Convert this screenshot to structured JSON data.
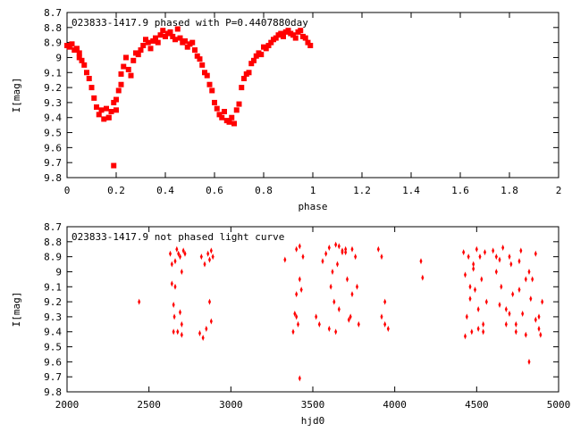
{
  "chart_data": [
    {
      "type": "scatter",
      "title": "023833-1417.9 phased with P=0.4407880day",
      "xlabel": "phase",
      "ylabel": "I[mag]",
      "xlim": [
        0,
        2
      ],
      "ylim": [
        9.8,
        8.7
      ],
      "y_inverted": true,
      "x_ticks": [
        "0",
        "0.2",
        "0.4",
        "0.6",
        "0.8",
        "1",
        "1.2",
        "1.4",
        "1.6",
        "1.8",
        "2"
      ],
      "y_ticks": [
        "8.7",
        "8.8",
        "8.9",
        "9",
        "9.1",
        "9.2",
        "9.3",
        "9.4",
        "9.5",
        "9.6",
        "9.7",
        "9.8"
      ],
      "marker": "filled-square",
      "color": "#ff0000",
      "series": [
        {
          "x": [
            0.0,
            0.01,
            0.02,
            0.03,
            0.04,
            0.05,
            0.05,
            0.06,
            0.07,
            0.08,
            0.09,
            0.1,
            0.11,
            0.12,
            0.13,
            0.14,
            0.15,
            0.16,
            0.17,
            0.18,
            0.19,
            0.2,
            0.2,
            0.21,
            0.22,
            0.22,
            0.23,
            0.24,
            0.25,
            0.26,
            0.27,
            0.28,
            0.29,
            0.3,
            0.31,
            0.32,
            0.33,
            0.34,
            0.35,
            0.36,
            0.37,
            0.38,
            0.39,
            0.4,
            0.41,
            0.42,
            0.43,
            0.44,
            0.45,
            0.46,
            0.47,
            0.48,
            0.49,
            0.5,
            0.51,
            0.52,
            0.53,
            0.54,
            0.55,
            0.56,
            0.57,
            0.58,
            0.59,
            0.6,
            0.61,
            0.62,
            0.63,
            0.64,
            0.65,
            0.66,
            0.67,
            0.68,
            0.69,
            0.7,
            0.71,
            0.72,
            0.73,
            0.74,
            0.75,
            0.76,
            0.77,
            0.78,
            0.79,
            0.8,
            0.81,
            0.82,
            0.83,
            0.84,
            0.85,
            0.86,
            0.87,
            0.88,
            0.89,
            0.9,
            0.91,
            0.92,
            0.93,
            0.94,
            0.95,
            0.96,
            0.97,
            0.98,
            0.99,
            0.19,
            0.17
          ],
          "y": [
            8.92,
            8.93,
            8.91,
            8.95,
            8.94,
            8.97,
            9.0,
            9.02,
            9.05,
            9.1,
            9.14,
            9.2,
            9.27,
            9.33,
            9.38,
            9.35,
            9.41,
            9.34,
            9.4,
            9.36,
            9.3,
            9.35,
            9.28,
            9.22,
            9.18,
            9.11,
            9.06,
            9.0,
            9.08,
            9.12,
            9.02,
            8.97,
            8.98,
            8.95,
            8.92,
            8.88,
            8.9,
            8.94,
            8.89,
            8.87,
            8.9,
            8.85,
            8.82,
            8.86,
            8.84,
            8.83,
            8.86,
            8.88,
            8.81,
            8.87,
            8.9,
            8.89,
            8.93,
            8.91,
            8.9,
            8.95,
            8.99,
            9.01,
            9.05,
            9.1,
            9.12,
            9.18,
            9.22,
            9.3,
            9.34,
            9.38,
            9.4,
            9.36,
            9.42,
            9.43,
            9.4,
            9.44,
            9.35,
            9.31,
            9.2,
            9.14,
            9.11,
            9.1,
            9.04,
            9.02,
            8.99,
            8.97,
            8.98,
            8.93,
            8.94,
            8.92,
            8.9,
            8.88,
            8.87,
            8.85,
            8.84,
            8.86,
            8.83,
            8.82,
            8.84,
            8.85,
            8.87,
            8.83,
            8.82,
            8.86,
            8.87,
            8.9,
            8.92,
            9.72,
            9.4
          ]
        }
      ]
    },
    {
      "type": "scatter",
      "title": "023833-1417.9 not phased light curve",
      "xlabel": "hjd0",
      "ylabel": "I[mag]",
      "xlim": [
        2000,
        5000
      ],
      "ylim": [
        9.8,
        8.7
      ],
      "y_inverted": true,
      "x_ticks": [
        "2000",
        "2500",
        "3000",
        "3500",
        "4000",
        "4500",
        "5000"
      ],
      "y_ticks": [
        "8.7",
        "8.8",
        "8.9",
        "9",
        "9.1",
        "9.2",
        "9.3",
        "9.4",
        "9.5",
        "9.6",
        "9.7",
        "9.8"
      ],
      "marker": "diamond",
      "color": "#ff0000",
      "series": [
        {
          "x": [
            2440,
            2630,
            2640,
            2650,
            2655,
            2660,
            2670,
            2675,
            2680,
            2690,
            2700,
            2700,
            2710,
            2720,
            2640,
            2650,
            2660,
            2690,
            2700,
            2820,
            2830,
            2840,
            2850,
            2860,
            2870,
            2880,
            2890,
            2880,
            2870,
            2810,
            3330,
            3380,
            3390,
            3400,
            3410,
            3420,
            3430,
            3400,
            3420,
            3440,
            3420,
            3400,
            3520,
            3540,
            3560,
            3580,
            3600,
            3610,
            3630,
            3640,
            3650,
            3660,
            3680,
            3700,
            3710,
            3730,
            3740,
            3760,
            3770,
            3780,
            3600,
            3640,
            3660,
            3700,
            3740,
            3620,
            3680,
            3720,
            3900,
            3920,
            3940,
            3960,
            3920,
            3940,
            4160,
            4170,
            4420,
            4430,
            4440,
            4450,
            4460,
            4470,
            4480,
            4490,
            4500,
            4510,
            4520,
            4530,
            4540,
            4550,
            4560,
            4430,
            4460,
            4480,
            4510,
            4540,
            4600,
            4620,
            4640,
            4660,
            4680,
            4700,
            4720,
            4740,
            4760,
            4780,
            4800,
            4820,
            4840,
            4860,
            4880,
            4900,
            4620,
            4650,
            4680,
            4710,
            4740,
            4770,
            4800,
            4830,
            4860,
            4890,
            4640,
            4700,
            4760,
            4820,
            4880
          ],
          "y": [
            9.2,
            8.88,
            8.95,
            9.4,
            9.3,
            9.1,
            8.85,
            9.4,
            8.88,
            8.9,
            9.42,
            9.0,
            8.86,
            8.88,
            9.08,
            9.22,
            8.93,
            9.27,
            9.35,
            8.9,
            9.44,
            8.95,
            9.38,
            8.88,
            8.92,
            8.86,
            8.9,
            9.33,
            9.2,
            9.41,
            8.92,
            9.4,
            9.28,
            8.85,
            9.35,
            8.83,
            9.12,
            9.3,
            9.71,
            8.9,
            9.05,
            9.15,
            9.3,
            9.35,
            8.93,
            8.88,
            8.84,
            9.1,
            9.2,
            8.82,
            8.95,
            9.25,
            8.86,
            8.87,
            9.05,
            9.3,
            8.85,
            8.9,
            9.1,
            9.35,
            9.38,
            9.4,
            8.83,
            8.85,
            9.15,
            9.0,
            8.87,
            9.32,
            8.85,
            8.9,
            9.2,
            9.38,
            9.3,
            9.35,
            8.93,
            9.04,
            8.87,
            9.02,
            9.3,
            8.9,
            9.18,
            9.4,
            8.95,
            9.12,
            8.85,
            9.25,
            8.9,
            9.05,
            9.35,
            8.87,
            9.2,
            9.43,
            9.1,
            8.98,
            9.38,
            9.4,
            8.86,
            9.0,
            9.22,
            8.84,
            9.35,
            8.9,
            9.15,
            9.4,
            8.93,
            9.28,
            9.42,
            9.6,
            9.05,
            8.88,
            9.3,
            9.2,
            8.9,
            9.1,
            9.25,
            8.95,
            9.35,
            8.86,
            9.05,
            9.18,
            9.32,
            9.42,
            8.92,
            9.28,
            9.12,
            9.0,
            9.38
          ]
        }
      ]
    }
  ]
}
